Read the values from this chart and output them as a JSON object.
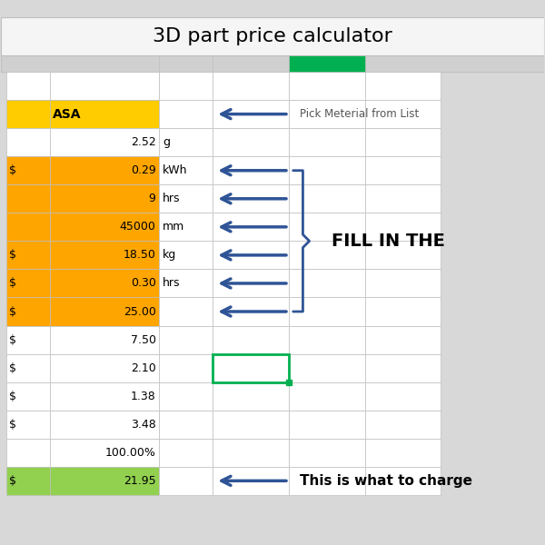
{
  "title": "3D part price calculator",
  "title_fontsize": 16,
  "rows": [
    {
      "label_left": "",
      "dollar": false,
      "value": "",
      "unit": "",
      "bg": "#ffffff"
    },
    {
      "label_left": "ASA",
      "dollar": false,
      "value": "",
      "unit": "",
      "bg": "#ffcc00"
    },
    {
      "label_left": "",
      "dollar": false,
      "value": "2.52",
      "unit": "g",
      "bg": "#ffffff"
    },
    {
      "label_left": "",
      "dollar": true,
      "value": "0.29",
      "unit": "kWh",
      "bg": "#ffa500"
    },
    {
      "label_left": "",
      "dollar": false,
      "value": "9",
      "unit": "hrs",
      "bg": "#ffa500"
    },
    {
      "label_left": "",
      "dollar": false,
      "value": "45000",
      "unit": "mm",
      "bg": "#ffa500"
    },
    {
      "label_left": "",
      "dollar": true,
      "value": "18.50",
      "unit": "kg",
      "bg": "#ffa500"
    },
    {
      "label_left": "",
      "dollar": true,
      "value": "0.30",
      "unit": "hrs",
      "bg": "#ffa500"
    },
    {
      "label_left": "",
      "dollar": true,
      "value": "25.00",
      "unit": "",
      "bg": "#ffa500"
    },
    {
      "label_left": "",
      "dollar": true,
      "value": "7.50",
      "unit": "",
      "bg": "#ffffff"
    },
    {
      "label_left": "",
      "dollar": true,
      "value": "2.10",
      "unit": "",
      "bg": "#ffffff"
    },
    {
      "label_left": "",
      "dollar": true,
      "value": "1.38",
      "unit": "",
      "bg": "#ffffff"
    },
    {
      "label_left": "",
      "dollar": true,
      "value": "3.48",
      "unit": "",
      "bg": "#ffffff"
    },
    {
      "label_left": "",
      "dollar": false,
      "value": "100.00%",
      "unit": "",
      "bg": "#ffffff"
    },
    {
      "label_left": "",
      "dollar": true,
      "value": "21.95",
      "unit": "",
      "bg": "#92d050"
    }
  ],
  "arrow_color": "#2f5496",
  "cell_border_color": "#bfbfbf",
  "green_border_color": "#00b050",
  "annotation_pick": "Pick Meterial from List",
  "annotation_fill": "FILL IN THE",
  "annotation_charge": "This is what to charge"
}
